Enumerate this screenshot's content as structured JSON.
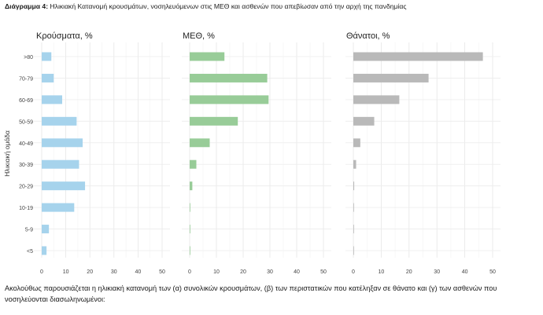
{
  "caption": {
    "label": "Διάγραμμα 4:",
    "text": "Ηλικιακή Κατανομή κρουσμάτων, νοσηλευόμενων στις ΜΕΘ και ασθενών που απεβίωσαν από την αρχή της πανδημίας"
  },
  "paragraph": "Ακολούθως παρουσιάζεται η ηλικιακή κατανομή των (α) συνολικών κρουσμάτων, (β) των περιστατικών που κατέληξαν σε θάνατο και (γ) των ασθενών που νοσηλεύονται διασωληνωμένοι:",
  "chart_data": {
    "type": "bar",
    "orientation": "horizontal",
    "ylabel": "Ηλικιακή ομάδα",
    "categories": [
      ">80",
      "70-79",
      "60-69",
      "50-59",
      "40-49",
      "30-39",
      "20-29",
      "10-19",
      "5-9",
      "<5"
    ],
    "xlim": [
      0,
      50
    ],
    "xticks": [
      0,
      10,
      20,
      30,
      40,
      50
    ],
    "grid": true,
    "panels": [
      {
        "title": "Κρούσματα, %",
        "color": "#a6d3ec",
        "values": [
          4.0,
          5.0,
          8.5,
          14.5,
          17.0,
          15.5,
          18.0,
          13.5,
          3.0,
          2.0
        ]
      },
      {
        "title": "ΜΕΘ, %",
        "color": "#98cc98",
        "values": [
          13.0,
          29.0,
          29.5,
          18.0,
          7.5,
          2.5,
          1.0,
          0.2,
          0.1,
          0.1
        ]
      },
      {
        "title": "Θάνατοι, %",
        "color": "#b9b9b9",
        "values": [
          46.5,
          27.0,
          16.5,
          7.5,
          2.5,
          1.0,
          0.3,
          0.1,
          0.05,
          0.05
        ]
      }
    ]
  }
}
